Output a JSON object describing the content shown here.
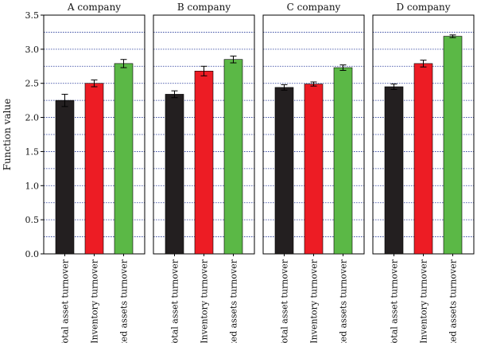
{
  "chart_data": {
    "type": "bar",
    "ylabel": "Function value",
    "ylim": [
      0.0,
      3.5
    ],
    "yticks": [
      "0.0",
      "0.5",
      "1.0",
      "1.5",
      "2.0",
      "2.5",
      "3.0",
      "3.5"
    ],
    "grid": "horizontal dotted lines every 0.25",
    "categories": [
      "Total asset turnover",
      "Inventory turnover",
      "Fixed assets turnover"
    ],
    "bar_colors": [
      "#231f20",
      "#ed1c24",
      "#5bb846"
    ],
    "grid_color": "#2b3e9c",
    "panels": [
      {
        "title": "A company",
        "values": [
          2.25,
          2.5,
          2.79
        ],
        "errors": [
          0.09,
          0.05,
          0.06
        ]
      },
      {
        "title": "B company",
        "values": [
          2.34,
          2.68,
          2.85
        ],
        "errors": [
          0.05,
          0.07,
          0.05
        ]
      },
      {
        "title": "C company",
        "values": [
          2.44,
          2.49,
          2.73
        ],
        "errors": [
          0.04,
          0.03,
          0.04
        ]
      },
      {
        "title": "D company",
        "values": [
          2.45,
          2.79,
          3.19
        ],
        "errors": [
          0.04,
          0.05,
          0.02
        ]
      }
    ]
  }
}
